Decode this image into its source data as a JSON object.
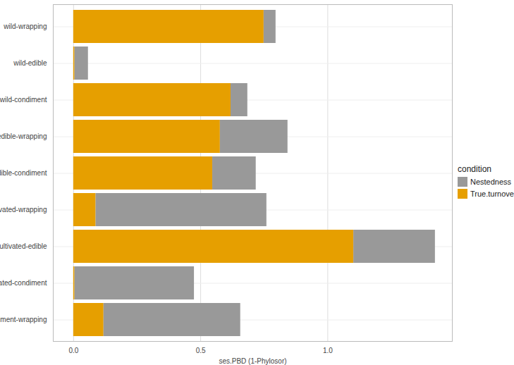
{
  "chart_data": {
    "type": "bar",
    "orientation": "horizontal",
    "stacked": true,
    "grid": true,
    "legend": "right",
    "legend_title": "condition",
    "x_label": "ses.PBD (1-Phylosor)",
    "categories": [
      "wild-wrapping",
      "wild-edible",
      "wild-condiment",
      "edible-wrapping",
      "edible-condiment",
      "cultivated-wrapping",
      "cultivated-edible",
      "cultivated-condiment",
      "condiment-wrapping"
    ],
    "series": [
      {
        "name": "True.turnover",
        "color": "#E69F00",
        "values": [
          0.749,
          0.005,
          0.619,
          0.577,
          0.547,
          0.088,
          1.102,
          0.005,
          0.119
        ]
      },
      {
        "name": "Nestedness",
        "color": "#999999",
        "values": [
          0.047,
          0.053,
          0.066,
          0.266,
          0.171,
          0.672,
          0.321,
          0.47,
          0.538
        ]
      }
    ],
    "legend_order": [
      "Nestedness",
      "True.turnover"
    ],
    "xlim": [
      -0.08,
      1.49
    ],
    "xticks": [
      {
        "value": 0,
        "label": "0.0"
      },
      {
        "value": 0.5,
        "label": "0.5"
      },
      {
        "value": 1,
        "label": "1.0"
      }
    ]
  }
}
